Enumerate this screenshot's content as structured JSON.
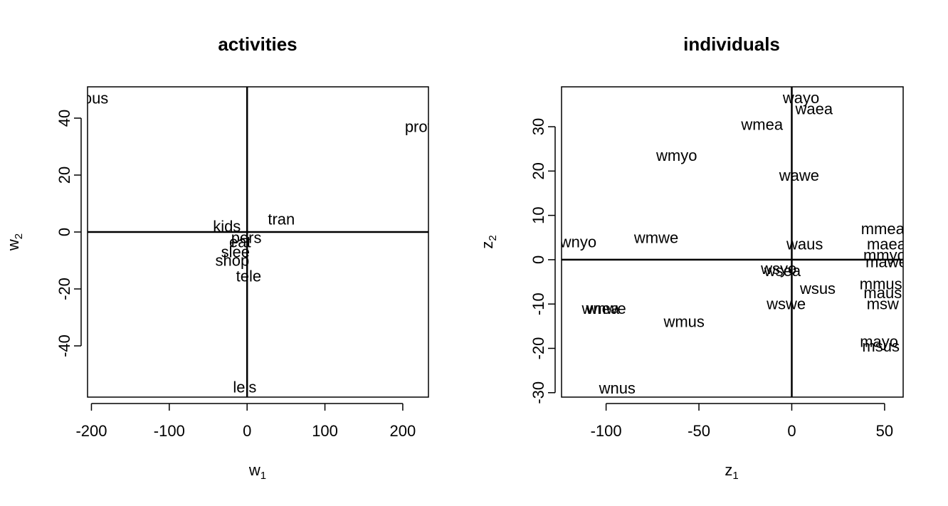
{
  "chart_data": [
    {
      "type": "scatter",
      "title": "activities",
      "xlabel": "w",
      "xlabel_sub": "1",
      "ylabel": "w",
      "ylabel_sub": "2",
      "xlim": [
        -205,
        233
      ],
      "ylim": [
        -58,
        51
      ],
      "xticks": [
        -200,
        -100,
        0,
        100,
        200
      ],
      "yticks": [
        -40,
        -20,
        0,
        20,
        40
      ],
      "reference_lines": {
        "x": 0,
        "y": 0
      },
      "points": [
        {
          "label": "hous",
          "x": -200,
          "y": 47
        },
        {
          "label": "prof",
          "x": 220,
          "y": 37
        },
        {
          "label": "tran",
          "x": 44,
          "y": 4.5
        },
        {
          "label": "kids",
          "x": -26,
          "y": 2
        },
        {
          "label": "pers",
          "x": -1,
          "y": -2
        },
        {
          "label": "eat",
          "x": -9,
          "y": -3.5
        },
        {
          "label": "slee",
          "x": -15,
          "y": -7
        },
        {
          "label": "shop",
          "x": -19,
          "y": -10
        },
        {
          "label": "tele",
          "x": 2,
          "y": -15.5
        },
        {
          "label": "leis",
          "x": -3,
          "y": -54.5
        }
      ]
    },
    {
      "type": "scatter",
      "title": "individuals",
      "xlabel": "z",
      "xlabel_sub": "1",
      "ylabel": "z",
      "ylabel_sub": "2",
      "xlim": [
        -124,
        60
      ],
      "ylim": [
        -31,
        39
      ],
      "xticks": [
        -100,
        -50,
        0,
        50
      ],
      "yticks": [
        -30,
        -20,
        -10,
        0,
        10,
        20,
        30
      ],
      "reference_lines": {
        "x": 0,
        "y": 0
      },
      "points": [
        {
          "label": "wayo",
          "x": 5,
          "y": 36.5
        },
        {
          "label": "waea",
          "x": 12,
          "y": 34
        },
        {
          "label": "wmea",
          "x": -16,
          "y": 30.5
        },
        {
          "label": "wmyo",
          "x": -62,
          "y": 23.5
        },
        {
          "label": "wawe",
          "x": 4,
          "y": 19
        },
        {
          "label": "mmea",
          "x": 49,
          "y": 7
        },
        {
          "label": "maea",
          "x": 51,
          "y": 3.5
        },
        {
          "label": "wnyo",
          "x": -115,
          "y": 4
        },
        {
          "label": "wmwe",
          "x": -73,
          "y": 5
        },
        {
          "label": "waus",
          "x": 7,
          "y": 3.5
        },
        {
          "label": "mmyo",
          "x": 50,
          "y": 1
        },
        {
          "label": "mawe",
          "x": 51,
          "y": -0.5
        },
        {
          "label": "wsyo",
          "x": -7,
          "y": -2
        },
        {
          "label": "wsea",
          "x": -5,
          "y": -2.5
        },
        {
          "label": "wsus",
          "x": 14,
          "y": -6.5
        },
        {
          "label": "mmus",
          "x": 48,
          "y": -5.5
        },
        {
          "label": "maus",
          "x": 49,
          "y": -7.5
        },
        {
          "label": "wswe",
          "x": -3,
          "y": -10
        },
        {
          "label": "msw",
          "x": 49,
          "y": -10
        },
        {
          "label": "wnwe",
          "x": -100,
          "y": -11
        },
        {
          "label": "wnea",
          "x": -103,
          "y": -11
        },
        {
          "label": "wmus",
          "x": -58,
          "y": -14
        },
        {
          "label": "mayo",
          "x": 47,
          "y": -18.5
        },
        {
          "label": "msus",
          "x": 48,
          "y": -19.5
        },
        {
          "label": "wnus",
          "x": -94,
          "y": -29
        }
      ]
    }
  ]
}
